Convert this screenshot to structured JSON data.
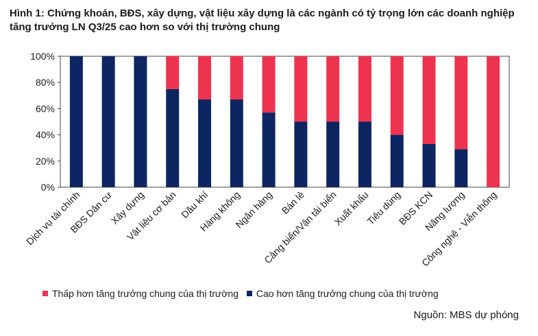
{
  "title": "Hình 1: Chứng khoán, BĐS, xây dựng, vật liệu xây dựng là các ngành có tỷ trọng lớn các doanh nghiệp tăng trưởng LN Q3/25 cao hơn so với thị trường chung",
  "source": "Nguồn: MBS dự phóng",
  "colors": {
    "lower": "#ee3350",
    "higher": "#0d2560"
  },
  "chart_data": {
    "type": "bar",
    "stacked": true,
    "categories": [
      "Dịch vụ tài chính",
      "BĐS Dân cư",
      "Xây dựng",
      "Vật liệu cơ bản",
      "Dầu khí",
      "Hàng không",
      "Ngân hàng",
      "Bán lẻ",
      "Cảng biển/Vận tải biển",
      "Xuất khẩu",
      "Tiêu dùng",
      "BĐS KCN",
      "Năng lượng",
      "Công nghệ - Viễn thông"
    ],
    "series": [
      {
        "name": "Cao hơn tăng trưởng chung của thị trường",
        "color": "#0d2560",
        "values": [
          100,
          100,
          100,
          75,
          67,
          67,
          57,
          50,
          50,
          50,
          40,
          33,
          29,
          0
        ]
      },
      {
        "name": "Thấp hơn tăng trưởng chung của thị trường",
        "color": "#ee3350",
        "values": [
          0,
          0,
          0,
          25,
          33,
          33,
          43,
          50,
          50,
          50,
          60,
          67,
          71,
          100
        ]
      }
    ],
    "yticks": [
      "0%",
      "20%",
      "40%",
      "60%",
      "80%",
      "100%"
    ],
    "ylim": [
      0,
      100
    ],
    "legend_position": "bottom"
  }
}
